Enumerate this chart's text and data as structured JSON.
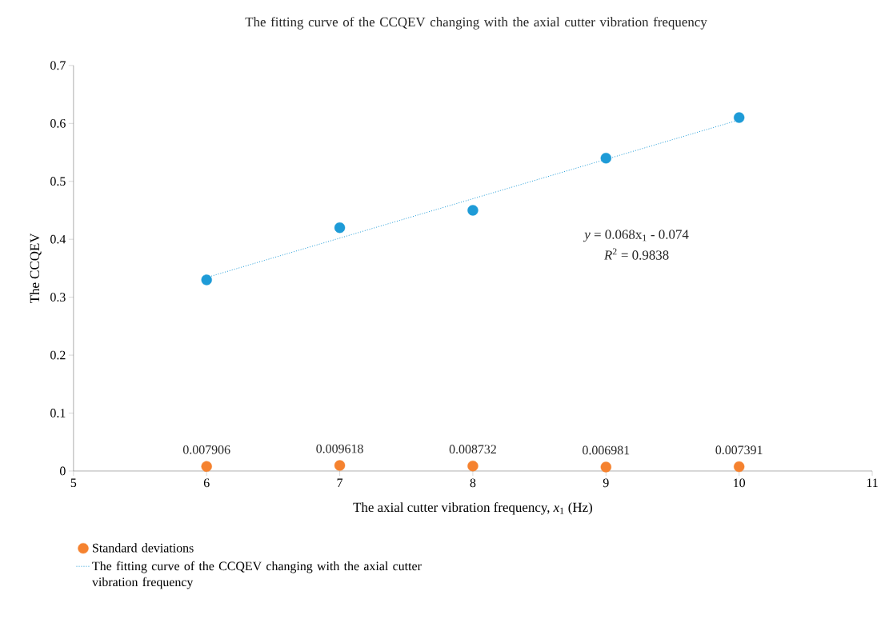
{
  "chart_data": {
    "type": "scatter",
    "title": "The fitting curve of the CCQEV changing with the axial cutter vibration frequency",
    "xlabel": "The axial cutter vibration frequency, *x*$_{1}$ (Hz)",
    "ylabel": "The CCQEV",
    "x": [
      6,
      7,
      8,
      9,
      10
    ],
    "series": [
      {
        "color": "#1e9bd7",
        "values": [
          0.33,
          0.42,
          0.45,
          0.54,
          0.61
        ]
      },
      {
        "name": "Standard deviations",
        "color": "#f5822f",
        "values": [
          0.007906,
          0.009618,
          0.008732,
          0.006981,
          0.007391
        ],
        "value_labels": [
          "0.007906",
          "0.009618",
          "0.008732",
          "0.006981",
          "0.007391"
        ]
      },
      {
        "name": "The fitting curve of the CCQEV changing with the axial cutter vibration frequency",
        "type": "line",
        "color": "#1e9bd7",
        "line_style": "dotted",
        "marker": "none",
        "x": [
          6,
          10
        ],
        "values": [
          0.334,
          0.606
        ]
      }
    ],
    "annotations": [
      "*y* = 0.068x$_{1}$ - 0.074",
      "*R*$^{2}$ = 0.9838"
    ],
    "xlim": [
      5,
      11
    ],
    "xticks": [
      5,
      6,
      7,
      8,
      9,
      10,
      11
    ],
    "ylim": [
      0,
      0.7
    ],
    "yticks": [
      0,
      0.1,
      0.2,
      0.3,
      0.4,
      0.5,
      0.6,
      0.7
    ],
    "marker": "circle",
    "grid": false,
    "legend": "bottom left"
  }
}
